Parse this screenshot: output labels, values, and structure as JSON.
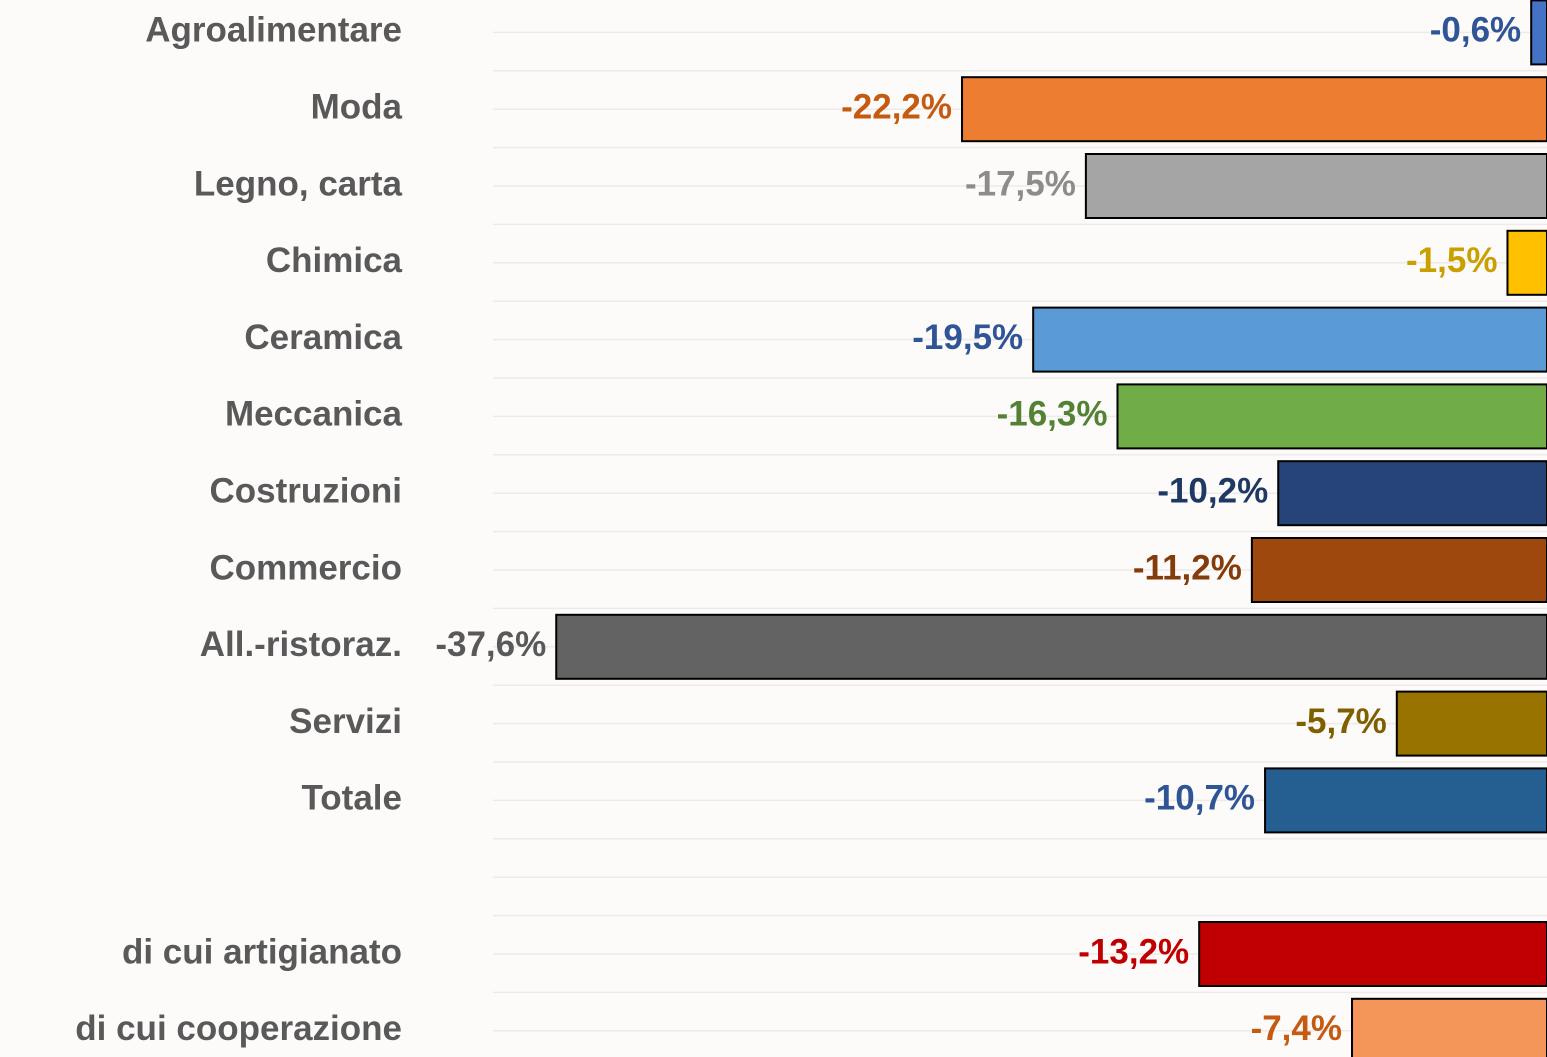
{
  "chart_data": {
    "type": "hbar",
    "categories": [
      "Agroalimentare",
      "Moda",
      "Legno, carta",
      "Chimica",
      "Ceramica",
      "Meccanica",
      "Costruzioni",
      "Commercio",
      "All.-ristoraz.",
      "Servizi",
      "Totale",
      null,
      "di cui artigianato",
      "di cui cooperazione"
    ],
    "values": [
      -0.6,
      -22.2,
      -17.5,
      -1.5,
      -19.5,
      -16.3,
      -10.2,
      -11.2,
      -37.6,
      -5.7,
      -10.7,
      null,
      -13.2,
      -7.4
    ],
    "value_labels": [
      "-0,6%",
      "-22,2%",
      "-17,5%",
      "-1,5%",
      "-19,5%",
      "-16,3%",
      "-10,2%",
      "-11,2%",
      "-37,6%",
      "-5,7%",
      "-10,7%",
      null,
      "-13,2%",
      "-7,4%"
    ],
    "colors": [
      "#4472c4",
      "#ed7d31",
      "#a5a5a5",
      "#ffc000",
      "#5b9bd5",
      "#70ad47",
      "#264478",
      "#9e480e",
      "#636363",
      "#997300",
      "#255e91",
      null,
      "#c00000",
      "#f4965a"
    ],
    "label_colors": [
      "#2f5597",
      "#c55a11",
      "#8c8c8c",
      "#c9a000",
      "#2f5597",
      "#548235",
      "#1f3864",
      "#843c0c",
      "#595959",
      "#7f6000",
      "#2f5597",
      null,
      "#c00000",
      "#c55a11"
    ],
    "xlim": [
      -40,
      0
    ]
  }
}
